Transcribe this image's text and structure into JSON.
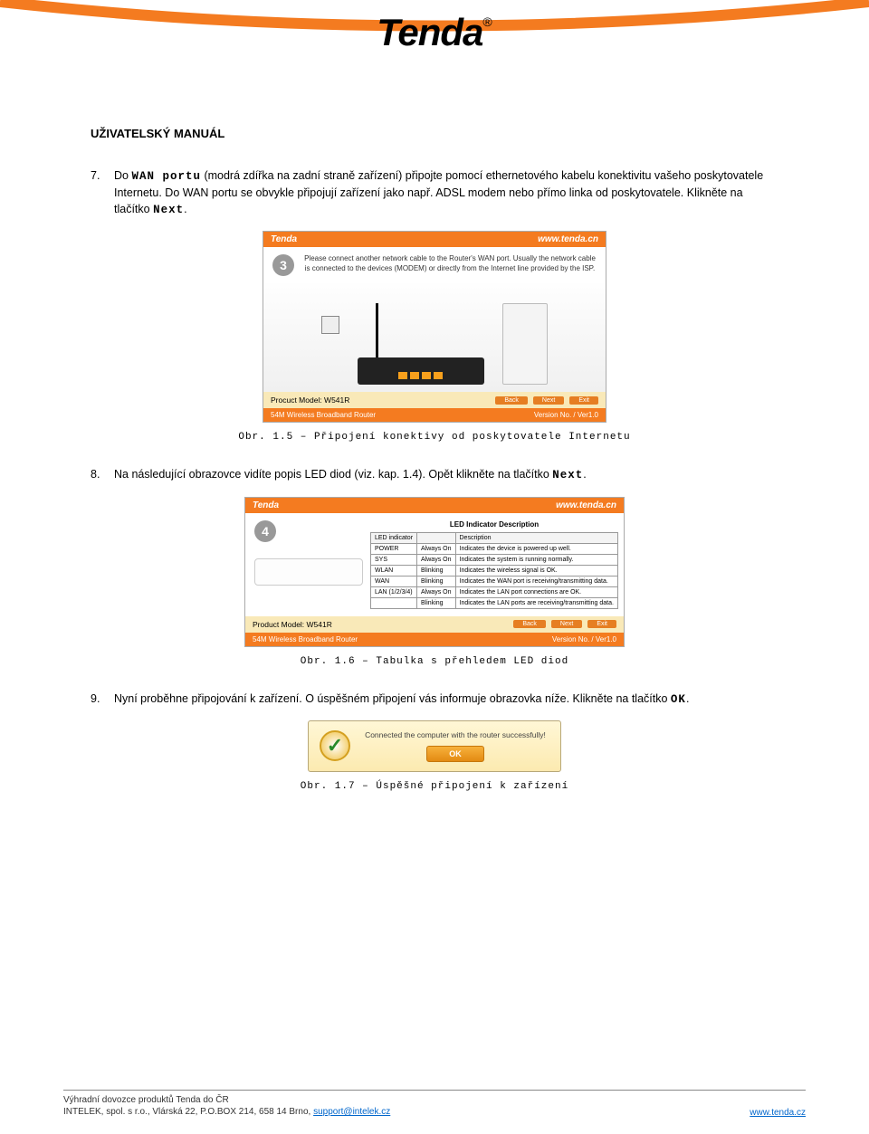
{
  "brand": {
    "name": "Tenda",
    "registered": "®",
    "logo_color": "#000000"
  },
  "header_arc_color": "#f47b20",
  "doc_title": "UŽIVATELSKÝ MANUÁL",
  "steps": {
    "s7": {
      "num": "7.",
      "t1": "Do ",
      "t2": "WAN portu",
      "t3": " (modrá zdířka na zadní straně zařízení) připojte pomocí ethernetového kabelu konektivitu vašeho poskytovatele Internetu. Do WAN portu se obvykle připojují zařízení jako např. ADSL modem nebo přímo linka od poskytovatele. Klikněte na tlačítko ",
      "t4": "Next",
      "t5": "."
    },
    "s8": {
      "num": "8.",
      "t1": "Na následující obrazovce vidíte popis LED diod (viz. kap. 1.4). Opět klikněte na tlačítko ",
      "t2": "Next",
      "t3": "."
    },
    "s9": {
      "num": "9.",
      "t1": "Nyní proběhne připojování k zařízení. O úspěšném připojení vás informuje obrazovka níže. Klikněte na tlačítko ",
      "t2": "OK",
      "t3": "."
    }
  },
  "captions": {
    "c1": "Obr. 1.5 – Připojení konektivy od poskytovatele Internetu",
    "c2": "Obr. 1.6 – Tabulka s přehledem LED diod",
    "c3": "Obr. 1.7 – Úspěšné připojení k zařízení"
  },
  "fig1": {
    "top_left": "Tenda",
    "top_right": "www.tenda.cn",
    "circle": "3",
    "instr": "Please connect another network cable to the Router's WAN port. Usually the network cable is connected to the devices (MODEM) or directly from the Internet line provided by the ISP.",
    "model_label": "Procuct Model: W541R",
    "btn_back": "Back",
    "btn_next": "Next",
    "btn_exit": "Exit",
    "footer_left": "54M Wireless Broadband Router",
    "footer_right": "Version No. / Ver1.0",
    "colors": {
      "bar": "#f47b20",
      "model_bg": "#f9e9b8",
      "port": "#f8a01c"
    }
  },
  "fig2": {
    "top_left": "Tenda",
    "top_right": "www.tenda.cn",
    "circle": "4",
    "heading": "LED Indicator Description",
    "table": {
      "headers": [
        "LED indicator",
        "",
        "Description"
      ],
      "rows": [
        [
          "POWER",
          "Always On",
          "Indicates the device is powered up well."
        ],
        [
          "SYS",
          "Always On",
          "Indicates the system is running normally."
        ],
        [
          "WLAN",
          "Blinking",
          "Indicates the wireless signal is OK."
        ],
        [
          "WAN",
          "Blinking",
          "Indicates the WAN port is receiving/transmitting data."
        ],
        [
          "LAN (1/2/3/4)",
          "Always On",
          "Indicates the LAN port connections are OK."
        ],
        [
          "",
          "Blinking",
          "Indicates the LAN ports are receiving/transmitting data."
        ]
      ]
    },
    "model_label": "Product Model: W541R",
    "btn_back": "Back",
    "btn_next": "Next",
    "btn_exit": "Exit",
    "footer_left": "54M Wireless Broadband Router",
    "footer_right": "Version No. / Ver1.0"
  },
  "fig3": {
    "text": "Connected the computer with the router successfully!",
    "ok": "OK",
    "bg": "#fceab0",
    "check_color": "#2a8a2a"
  },
  "footer": {
    "line1": "Výhradní dovozce produktů Tenda do ČR",
    "line2_a": "INTELEK, spol. s r.o., Vlárská 22, P.O.BOX 214, 658 14 Brno, ",
    "line2_link": "support@intelek.cz",
    "right_link": "www.tenda.cz"
  }
}
